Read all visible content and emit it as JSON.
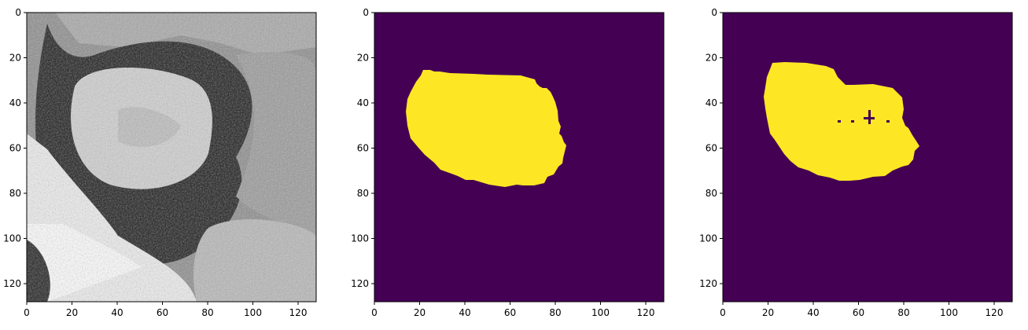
{
  "panels": [
    {
      "name": "ct-slice",
      "kind": "grayscale-image"
    },
    {
      "name": "ground-truth-mask",
      "kind": "binary-mask"
    },
    {
      "name": "predicted-mask",
      "kind": "binary-mask"
    }
  ],
  "axes": {
    "x_ticks": [
      0,
      20,
      40,
      60,
      80,
      100,
      120
    ],
    "y_ticks": [
      0,
      20,
      40,
      60,
      80,
      100,
      120
    ],
    "x_range": [
      0,
      128
    ],
    "y_range": [
      0,
      128
    ]
  },
  "colors": {
    "mask_background": "#440154",
    "mask_foreground": "#fde725",
    "image_black": "#000000",
    "image_white": "#ffffff"
  }
}
